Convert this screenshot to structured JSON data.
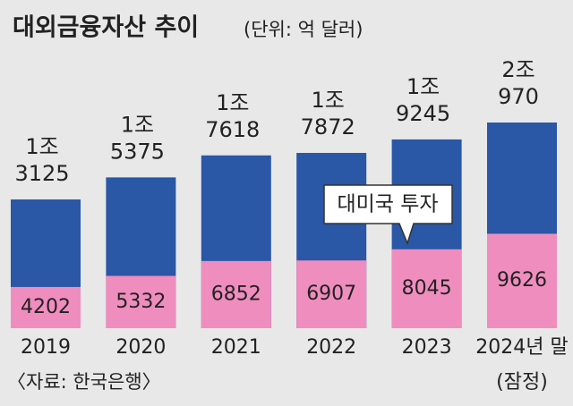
{
  "chart_data": {
    "type": "bar",
    "title": "대외금융자산 추이",
    "subtitle": "(단위: 억 달러)",
    "categories": [
      "2019",
      "2020",
      "2021",
      "2022",
      "2023",
      "2024년 말"
    ],
    "category_note": "(잠정)",
    "series": [
      {
        "name": "대외금융자산",
        "color": "#2a57a6",
        "values": [
          13125,
          15375,
          17618,
          17872,
          19245,
          20970
        ],
        "value_labels": [
          [
            "1조",
            "3125"
          ],
          [
            "1조",
            "5375"
          ],
          [
            "1조",
            "7618"
          ],
          [
            "1조",
            "7872"
          ],
          [
            "1조",
            "9245"
          ],
          [
            "2조",
            "970"
          ]
        ]
      },
      {
        "name": "대미국 투자",
        "color": "#f08dbf",
        "values": [
          4202,
          5332,
          6852,
          6907,
          8045,
          9626
        ]
      }
    ],
    "source": "〈자료: 한국은행〉"
  }
}
